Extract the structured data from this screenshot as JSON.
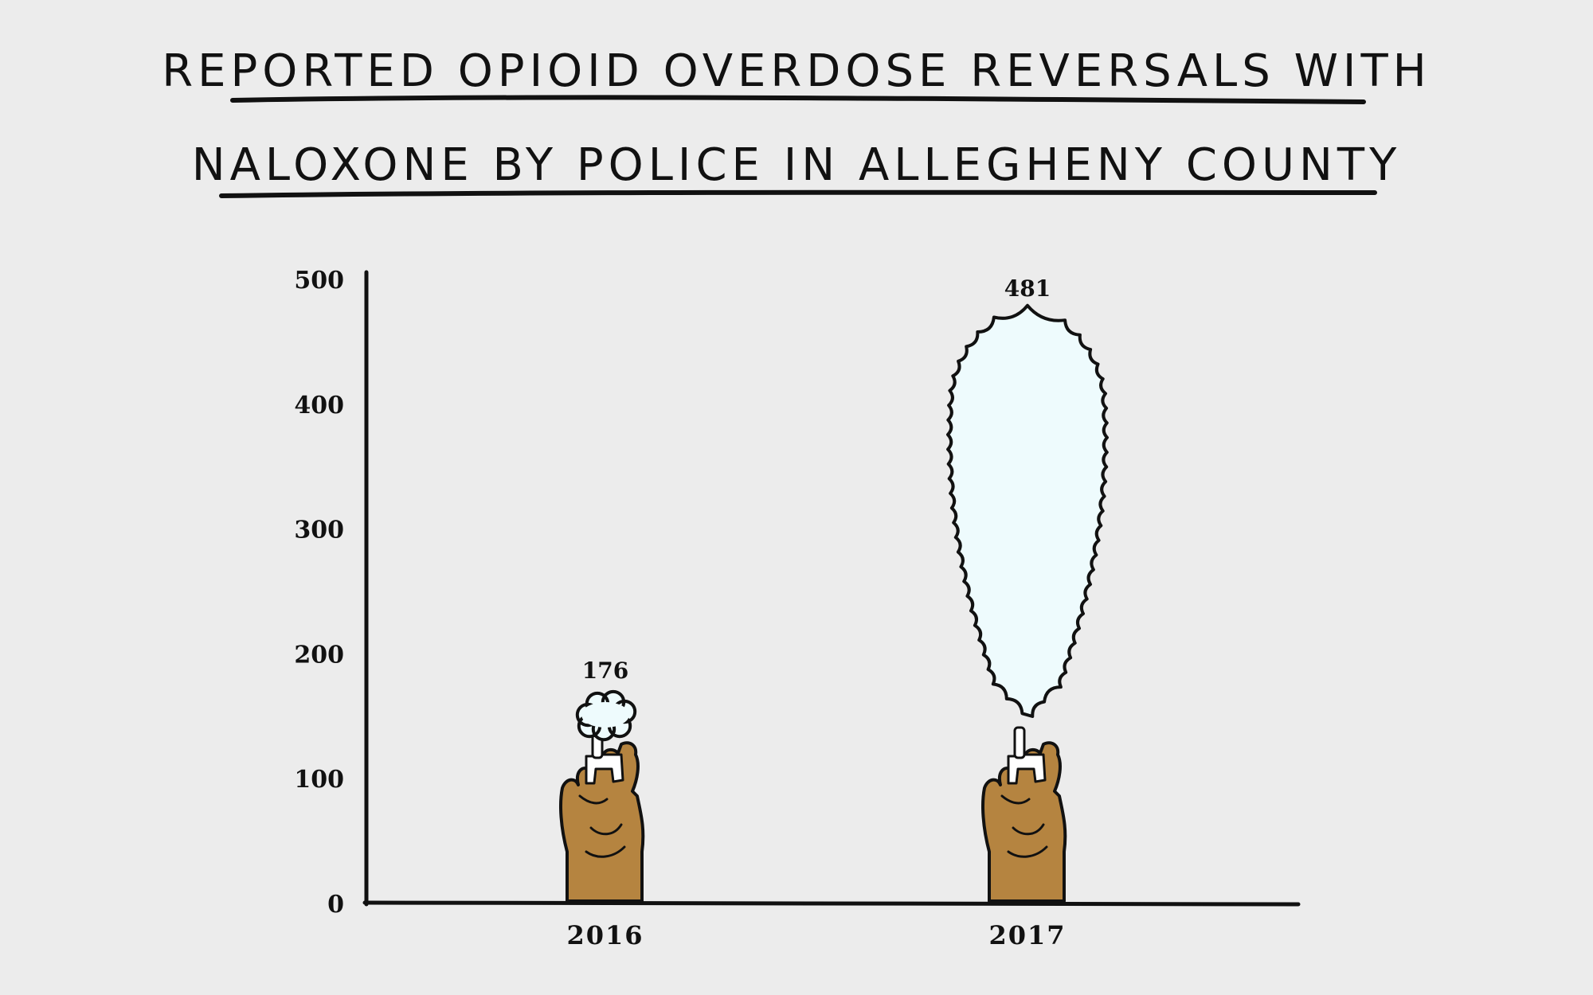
{
  "colors": {
    "background": "#ececec",
    "ink": "#111111",
    "cloud_fill": "#eefbfd",
    "hand_fill": "#b58440",
    "spray_fill": "#ffffff"
  },
  "chart_data": {
    "type": "bar",
    "title_lines": [
      "REPORTED OPIOID OVERDOSE REVERSALS WITH",
      "NALOXONE BY POLICE IN ALLEGHENY COUNTY"
    ],
    "categories": [
      "2016",
      "2017"
    ],
    "values": [
      176,
      481
    ],
    "data_labels": [
      "176",
      "481"
    ],
    "ylim": [
      0,
      500
    ],
    "yticks": [
      "0",
      "100",
      "200",
      "300",
      "400",
      "500"
    ],
    "xlabel": "",
    "ylabel": "",
    "grid": false,
    "legend": "none",
    "bar_style": "spray-cloud-from-hand"
  }
}
